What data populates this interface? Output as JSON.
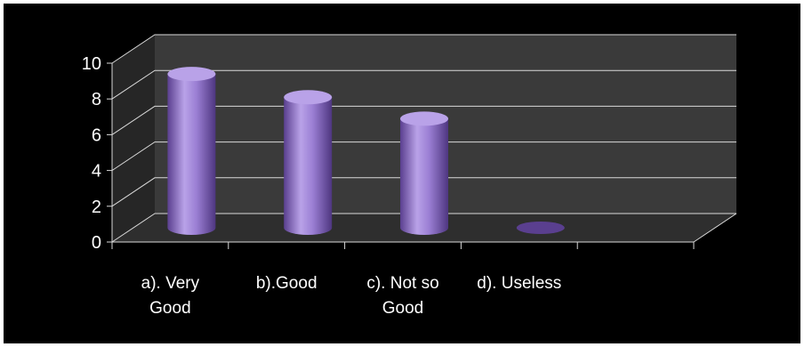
{
  "chart_data": {
    "type": "bar",
    "style": "3d-cylinder",
    "categories": [
      [
        "a). Very",
        "Good"
      ],
      [
        "b).Good"
      ],
      [
        "c). Not so",
        "Good"
      ],
      [
        "d). Useless"
      ]
    ],
    "values": [
      8.6,
      7.3,
      6.1,
      0
    ],
    "yticks": [
      "0",
      "2",
      "4",
      "6",
      "8",
      "10"
    ],
    "ylim": [
      0,
      10
    ],
    "title": "",
    "xlabel": "",
    "ylabel": "",
    "grid": true,
    "legend": "none",
    "colors": {
      "background": "#000000",
      "wall": "#3a3a3a",
      "floor": "#2e2e2e",
      "gridline": "#d9d9d9",
      "bar": "#9b7fd4",
      "bar_dark": "#5a3f8f",
      "bar_top": "#b9a2e8",
      "text": "#ffffff"
    }
  }
}
